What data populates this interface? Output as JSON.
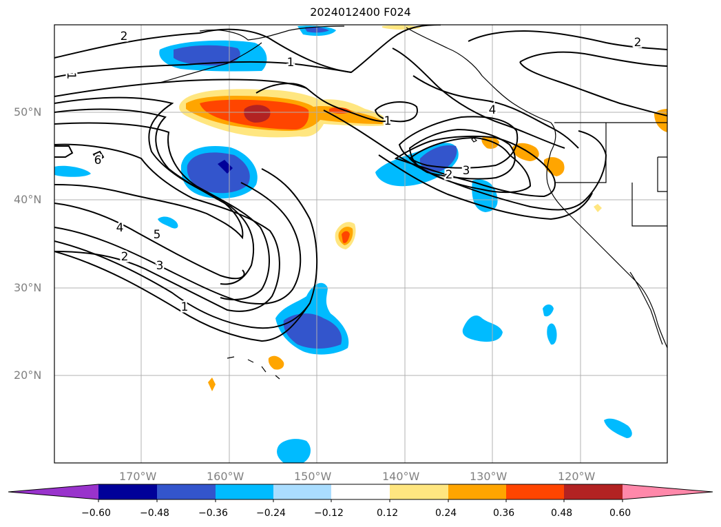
{
  "title": "2024012400 F024",
  "map": {
    "region": "North Pacific / western North America",
    "latitude_labels": [
      "50°N",
      "40°N",
      "30°N",
      "20°N"
    ],
    "longitude_labels": [
      "170°W",
      "160°W",
      "150°W",
      "140°W",
      "130°W",
      "120°W"
    ],
    "grid": true,
    "contour_labels": [
      "2",
      "1",
      "1",
      "1",
      "6",
      "4",
      "5",
      "2",
      "3",
      "1",
      "1",
      "4",
      "2",
      "3",
      "2"
    ]
  },
  "colorbar": {
    "orientation": "horizontal",
    "extend": "both",
    "tick_labels": [
      "−0.60",
      "−0.48",
      "−0.36",
      "−0.24",
      "−0.12",
      "0.12",
      "0.24",
      "0.36",
      "0.48",
      "0.60"
    ],
    "colors": [
      "#9933cc",
      "#000099",
      "#3355cc",
      "#00bbff",
      "#aaddff",
      "#ffffff",
      "#ffe680",
      "#ffa500",
      "#ff4500",
      "#b22222",
      "#ff88aa"
    ]
  },
  "chart_data": {
    "type": "heatmap",
    "title": "2024012400 F024",
    "xlabel": "",
    "ylabel": "",
    "colorbar_levels": [
      -0.6,
      -0.48,
      -0.36,
      -0.24,
      -0.12,
      0.12,
      0.24,
      0.36,
      0.48,
      0.6
    ],
    "contour_levels": [
      1,
      2,
      3,
      4,
      5,
      6
    ],
    "lon_range": [
      -180,
      -110
    ],
    "lat_range": [
      10,
      60
    ]
  }
}
